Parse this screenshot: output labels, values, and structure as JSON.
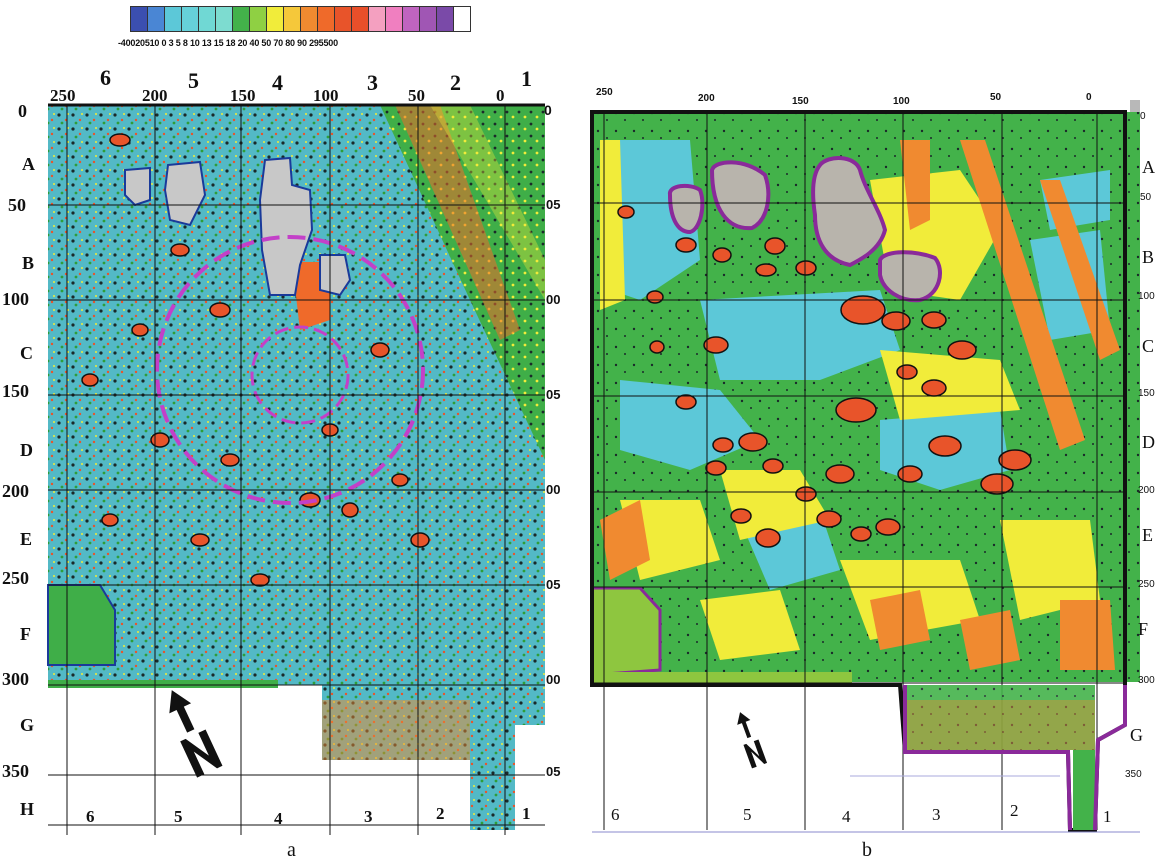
{
  "legend": {
    "colors": [
      "#3b4fb0",
      "#4a86d4",
      "#5cc8d8",
      "#66d1d9",
      "#70d8d4",
      "#7ddcd0",
      "#43b24a",
      "#8fd043",
      "#f1ec3a",
      "#f5c83a",
      "#f08a30",
      "#ef6a2a",
      "#e8542a",
      "#e84f2a",
      "#f4a0c0",
      "#f07fc0",
      "#c064c0",
      "#a056b4",
      "#7a4aa8",
      "#ffffff"
    ],
    "labels_text": "-40020510  0   3   5   8  10 13 15 18 20 40 50 70 80 90 295500"
  },
  "map_a": {
    "caption": "a",
    "zone_row_labels": [
      "0",
      "A",
      "50",
      "B",
      "100",
      "C",
      "150",
      "D",
      "200",
      "E",
      "250",
      "F",
      "300",
      "G",
      "350",
      "H"
    ],
    "top_numbers": [
      "250",
      "200",
      "150",
      "100",
      "50",
      "0"
    ],
    "top_zones": [
      "6",
      "5",
      "4",
      "3",
      "2",
      "1"
    ],
    "bottom_zones": [
      "6",
      "5",
      "4",
      "3",
      "2",
      "1"
    ],
    "right_partial": [
      "0",
      "05",
      "00",
      "05",
      "00",
      "05",
      "00",
      "05"
    ],
    "north_label": "N"
  },
  "map_b": {
    "caption": "b",
    "top_numbers": [
      "250",
      "200",
      "150",
      "100",
      "50",
      "0"
    ],
    "right_letters": [
      "A",
      "B",
      "C",
      "D",
      "E",
      "F",
      "G"
    ],
    "right_numbers": [
      "0",
      "50",
      "100",
      "150",
      "200",
      "250",
      "300",
      "350"
    ],
    "bottom_zones": [
      "6",
      "5",
      "4",
      "3",
      "2",
      "1"
    ],
    "north_label": "N"
  }
}
